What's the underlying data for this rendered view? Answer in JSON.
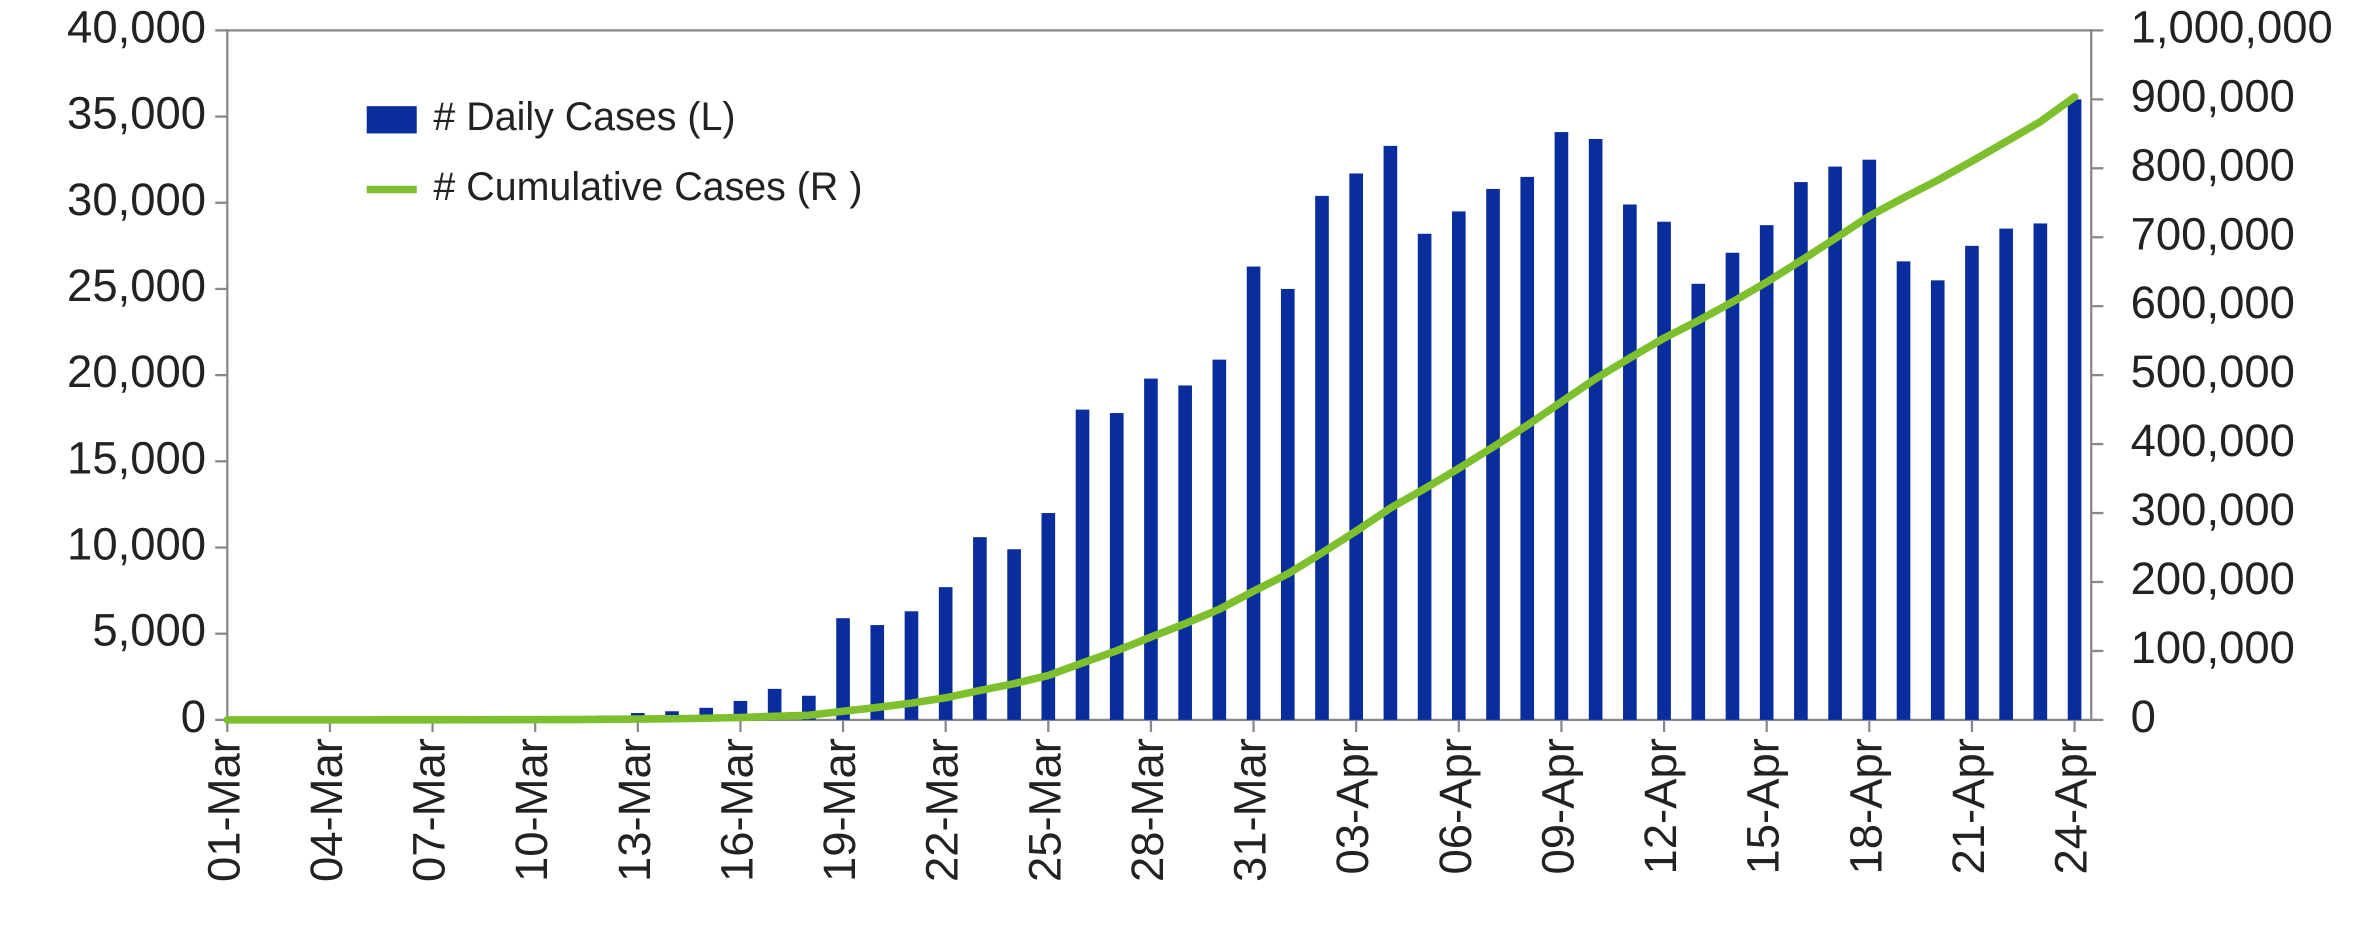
{
  "chart_data": {
    "type": "bar",
    "categories": [
      "01-Mar",
      null,
      null,
      "04-Mar",
      null,
      null,
      "07-Mar",
      null,
      null,
      "10-Mar",
      null,
      null,
      "13-Mar",
      null,
      null,
      "16-Mar",
      null,
      null,
      "19-Mar",
      null,
      null,
      "22-Mar",
      null,
      null,
      "25-Mar",
      null,
      null,
      "28-Mar",
      null,
      null,
      "31-Mar",
      null,
      null,
      "03-Apr",
      null,
      null,
      "06-Apr",
      null,
      null,
      "09-Apr",
      null,
      null,
      "12-Apr",
      null,
      null,
      "15-Apr",
      null,
      null,
      "18-Apr",
      null,
      null,
      "21-Apr",
      null,
      null,
      "24-Apr"
    ],
    "series": [
      {
        "name": "# Daily Cases (L)",
        "type": "bar",
        "color": "#0a2d9e",
        "values": [
          0,
          5,
          10,
          10,
          20,
          30,
          40,
          60,
          80,
          100,
          150,
          250,
          400,
          500,
          700,
          1100,
          1800,
          1400,
          5900,
          5500,
          6300,
          7700,
          10600,
          9900,
          12000,
          18000,
          17800,
          19800,
          19400,
          20900,
          26300,
          25000,
          30400,
          31700,
          33300,
          28200,
          29500,
          30800,
          31500,
          34100,
          33700,
          29900,
          28900,
          25300,
          27100,
          28700,
          31200,
          32100,
          32500,
          26600,
          25500,
          27500,
          28500,
          28800,
          36000
        ]
      },
      {
        "name": "# Cumulative Cases (R )",
        "type": "line",
        "axis": "y2",
        "color": "#7dbf2c",
        "values": [
          0,
          5,
          15,
          25,
          45,
          75,
          115,
          175,
          255,
          355,
          505,
          755,
          1155,
          1655,
          2355,
          3455,
          5255,
          6655,
          12555,
          18055,
          24355,
          32055,
          42655,
          52555,
          64555,
          82555,
          100355,
          120155,
          139555,
          160455,
          186755,
          211755,
          242155,
          273855,
          307155,
          335355,
          364855,
          395655,
          427155,
          461255,
          494955,
          524855,
          553755,
          579055,
          606155,
          634855,
          666055,
          698155,
          730655,
          757255,
          782755,
          810255,
          838755,
          867555,
          903555
        ]
      }
    ],
    "ylim": [
      0,
      40000
    ],
    "yticks": [
      0,
      {
        "value": 5000,
        "label": "5,000"
      },
      {
        "value": 10000,
        "label": "10,000"
      },
      {
        "value": 15000,
        "label": "15,000"
      },
      {
        "value": 20000,
        "label": "20,000"
      },
      {
        "value": 25000,
        "label": "25,000"
      },
      {
        "value": 30000,
        "label": "30,000"
      },
      {
        "value": 35000,
        "label": "35,000"
      },
      {
        "value": 40000,
        "label": "40,000"
      }
    ],
    "y2lim": [
      0,
      1000000
    ],
    "y2ticks": [
      0,
      {
        "value": 100000,
        "label": "100,000"
      },
      {
        "value": 200000,
        "label": "200,000"
      },
      {
        "value": 300000,
        "label": "300,000"
      },
      {
        "value": 400000,
        "label": "400,000"
      },
      {
        "value": 500000,
        "label": "500,000"
      },
      {
        "value": 600000,
        "label": "600,000"
      },
      {
        "value": 700000,
        "label": "700,000"
      },
      {
        "value": 800000,
        "label": "800,000"
      },
      {
        "value": 900000,
        "label": "900,000"
      },
      {
        "value": 1000000,
        "label": "1,000,000"
      }
    ],
    "grid": false,
    "legend": "upper left"
  }
}
